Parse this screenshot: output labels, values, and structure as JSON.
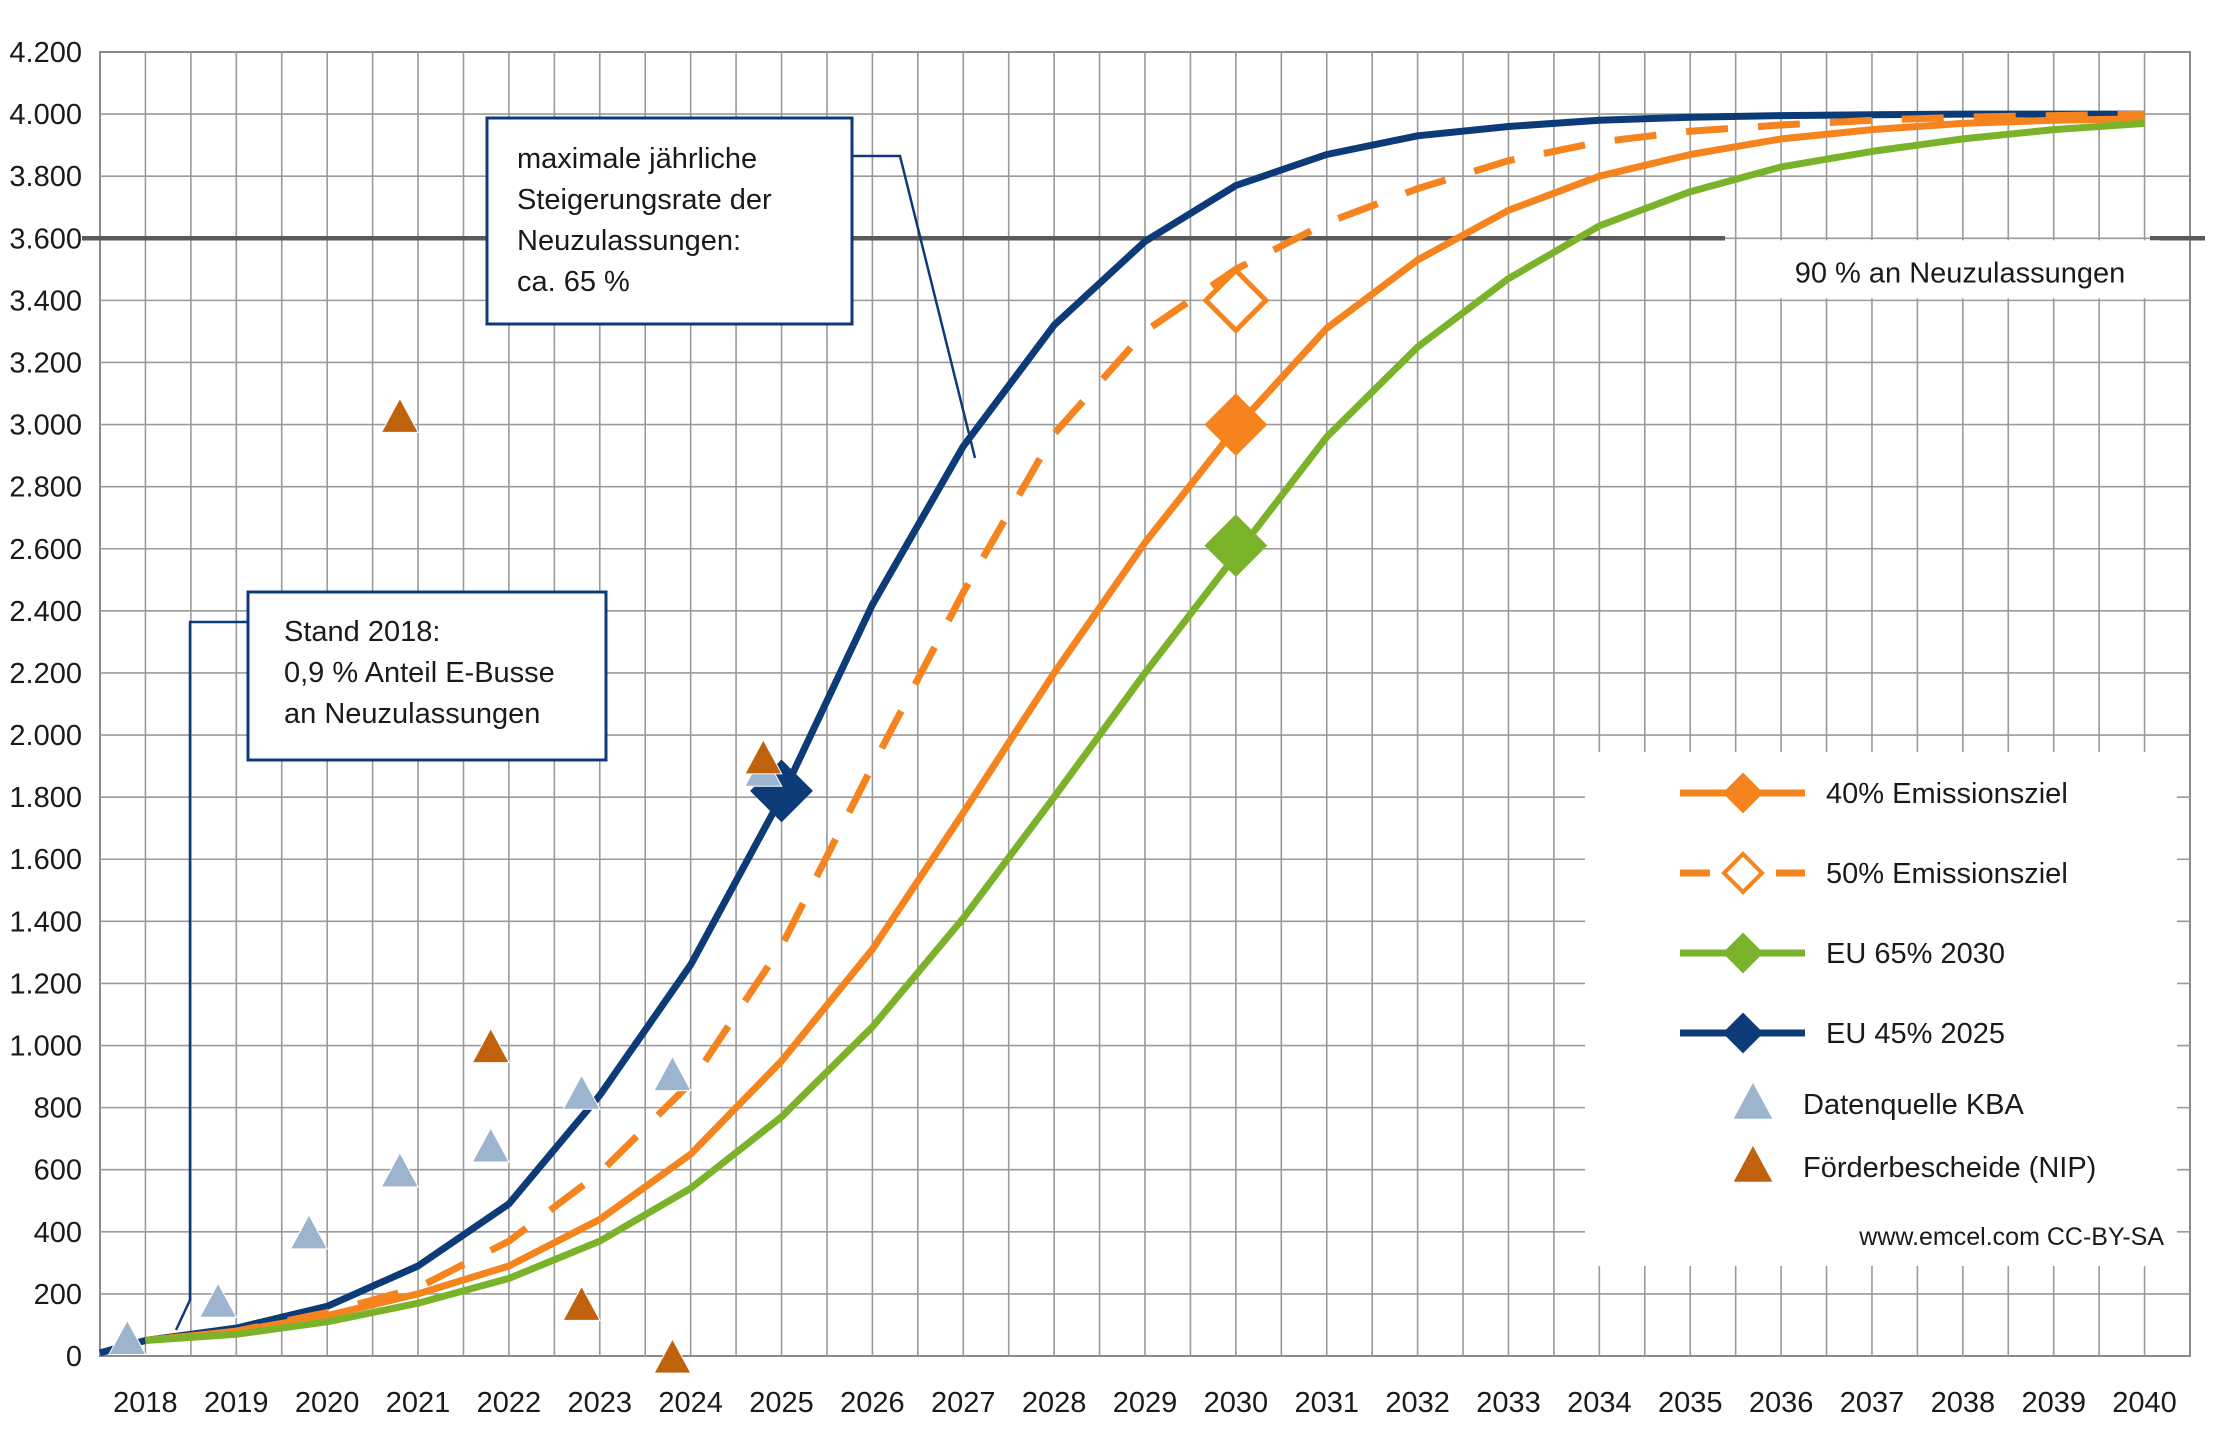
{
  "chart_data": {
    "type": "line",
    "title": "",
    "xlabel": "",
    "ylabel": "",
    "ylim": [
      0,
      4200
    ],
    "y_ticks": [
      0,
      200,
      400,
      600,
      800,
      1000,
      1200,
      1400,
      1600,
      1800,
      2000,
      2200,
      2400,
      2600,
      2800,
      3000,
      3200,
      3400,
      3600,
      3800,
      4000,
      4200
    ],
    "y_tick_labels": [
      "0",
      "200",
      "400",
      "600",
      "800",
      "1.000",
      "1.200",
      "1.400",
      "1.600",
      "1.800",
      "2.000",
      "2.200",
      "2.400",
      "2.600",
      "2.800",
      "3.000",
      "3.200",
      "3.400",
      "3.600",
      "3.800",
      "4.000",
      "4.200"
    ],
    "x_range": [
      2017.5,
      2040.5
    ],
    "x_tick_labels": [
      "2018",
      "2019",
      "2020",
      "2021",
      "2022",
      "2023",
      "2024",
      "2025",
      "2026",
      "2027",
      "2028",
      "2029",
      "2030",
      "2031",
      "2032",
      "2033",
      "2034",
      "2035",
      "2036",
      "2037",
      "2038",
      "2039",
      "2040"
    ],
    "grid": true,
    "series": [
      {
        "name": "EU 45% 2025",
        "color": "#0d3b78",
        "style": "solid",
        "marker": "diamond-filled",
        "x": [
          2017.5,
          2018,
          2019,
          2020,
          2021,
          2022,
          2023,
          2024,
          2025,
          2026,
          2027,
          2028,
          2029,
          2030,
          2031,
          2032,
          2033,
          2034,
          2035,
          2036,
          2037,
          2038,
          2039,
          2040
        ],
        "values": [
          10,
          50,
          90,
          160,
          290,
          490,
          840,
          1260,
          1800,
          2420,
          2930,
          3320,
          3590,
          3770,
          3870,
          3930,
          3960,
          3980,
          3990,
          3995,
          3998,
          4000,
          4000,
          4000
        ],
        "highlight": {
          "x": 2025,
          "y": 1820
        }
      },
      {
        "name": "50% Emissionsziel",
        "color": "#f5841f",
        "style": "dashed",
        "marker": "diamond-open",
        "x": [
          2018,
          2019,
          2020,
          2021,
          2022,
          2023,
          2024,
          2025,
          2026,
          2027,
          2028,
          2029,
          2030,
          2031,
          2032,
          2033,
          2034,
          2035,
          2036,
          2037,
          2038,
          2039,
          2040
        ],
        "values": [
          50,
          80,
          140,
          220,
          370,
          590,
          880,
          1320,
          1900,
          2460,
          2970,
          3300,
          3500,
          3650,
          3760,
          3850,
          3910,
          3945,
          3965,
          3980,
          3990,
          3995,
          4000
        ],
        "highlight": {
          "x": 2030,
          "y": 3400
        }
      },
      {
        "name": "40% Emissionsziel",
        "color": "#f5841f",
        "style": "solid",
        "marker": "diamond-filled",
        "x": [
          2018,
          2019,
          2020,
          2021,
          2022,
          2023,
          2024,
          2025,
          2026,
          2027,
          2028,
          2029,
          2030,
          2031,
          2032,
          2033,
          2034,
          2035,
          2036,
          2037,
          2038,
          2039,
          2040
        ],
        "values": [
          50,
          80,
          130,
          200,
          290,
          440,
          650,
          950,
          1310,
          1750,
          2200,
          2620,
          2990,
          3310,
          3530,
          3690,
          3800,
          3870,
          3920,
          3950,
          3970,
          3980,
          3985
        ],
        "highlight": {
          "x": 2030,
          "y": 3000
        }
      },
      {
        "name": "EU 65% 2030",
        "color": "#7ab32a",
        "style": "solid",
        "marker": "diamond-filled",
        "x": [
          2018,
          2019,
          2020,
          2021,
          2022,
          2023,
          2024,
          2025,
          2026,
          2027,
          2028,
          2029,
          2030,
          2031,
          2032,
          2033,
          2034,
          2035,
          2036,
          2037,
          2038,
          2039,
          2040
        ],
        "values": [
          50,
          70,
          110,
          170,
          250,
          370,
          540,
          770,
          1060,
          1410,
          1800,
          2200,
          2580,
          2960,
          3250,
          3470,
          3640,
          3750,
          3830,
          3880,
          3920,
          3950,
          3970
        ],
        "highlight": {
          "x": 2030,
          "y": 2610
        }
      }
    ],
    "points": [
      {
        "name": "Datenquelle KBA",
        "color": "#9db4cf",
        "x": [
          2018,
          2019,
          2020,
          2021,
          2022,
          2023,
          2024,
          2025
        ],
        "y": [
          50,
          170,
          390,
          590,
          670,
          840,
          900,
          1880
        ]
      },
      {
        "name": "Förderbescheide (NIP)",
        "color": "#c0610e",
        "x": [
          2021,
          2022,
          2023,
          2024,
          2025
        ],
        "y": [
          3020,
          990,
          160,
          -10,
          1920
        ]
      }
    ],
    "reference_line": {
      "y": 3600,
      "label": "90 % an Neuzulassungen"
    },
    "annotations": [
      {
        "lines": [
          "maximale jährliche",
          "Steigerungsrate der",
          "Neuzulassungen:",
          "ca. 65 %"
        ]
      },
      {
        "lines": [
          "Stand 2018:",
          "0,9 % Anteil E-Busse",
          "an Neuzulassungen"
        ]
      }
    ],
    "legend": {
      "placement": "bottom-right",
      "entries": [
        "40% Emissionsziel",
        "50% Emissionsziel",
        "EU 65% 2030",
        "EU 45% 2025",
        "Datenquelle KBA",
        "Förderbescheide (NIP)"
      ]
    },
    "source_label": "www.emcel.com CC-BY-SA"
  }
}
